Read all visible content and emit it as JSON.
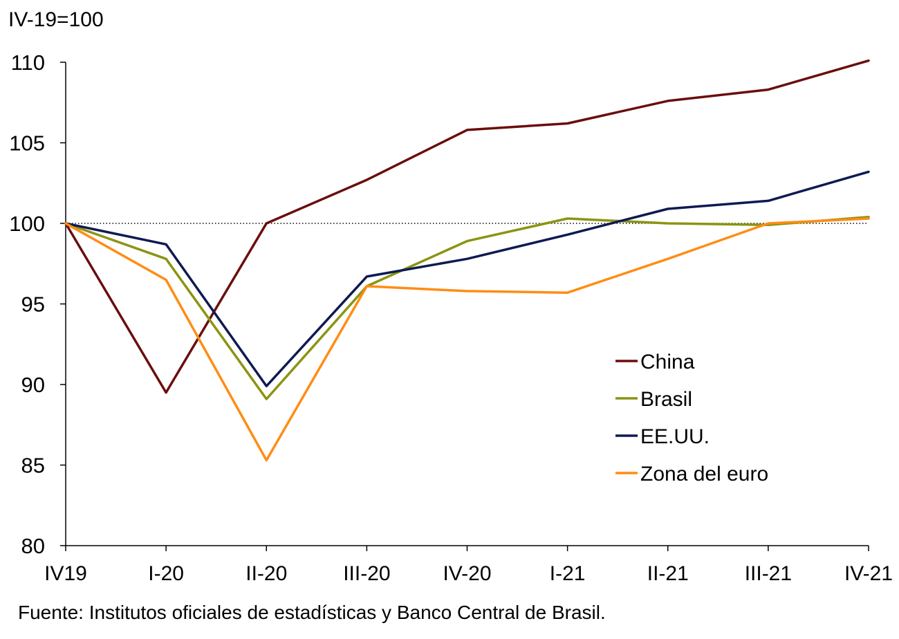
{
  "source": "Fuente: Institutos oficiales de estadísticas y Banco Central de Brasil.",
  "colors": {
    "china": "#6b0d0d",
    "brasil": "#8b9412",
    "eeuu": "#0f1a52",
    "zona_euro": "#ff8c14"
  },
  "chart_data": {
    "type": "line",
    "y_unit": "IV-19=100",
    "categories": [
      "IV19",
      "I-20",
      "II-20",
      "III-20",
      "IV-20",
      "I-21",
      "II-21",
      "III-21",
      "IV-21"
    ],
    "ylim": [
      80,
      110
    ],
    "yticks": [
      80,
      85,
      90,
      95,
      100,
      105,
      110
    ],
    "reference_line": 100,
    "grid": false,
    "legend_position": "bottom-right",
    "series": [
      {
        "name": "China",
        "color_key": "china",
        "values": [
          100,
          89.5,
          100,
          102.7,
          105.8,
          106.2,
          107.6,
          108.3,
          110.1
        ]
      },
      {
        "name": "Brasil",
        "color_key": "brasil",
        "values": [
          100,
          97.8,
          89.1,
          96.1,
          98.9,
          100.3,
          100.0,
          99.9,
          100.4
        ]
      },
      {
        "name": "EE.UU.",
        "color_key": "eeuu",
        "values": [
          100,
          98.7,
          89.9,
          96.7,
          97.8,
          99.3,
          100.9,
          101.4,
          103.2
        ]
      },
      {
        "name": "Zona del euro",
        "color_key": "zona_euro",
        "values": [
          100,
          96.5,
          85.3,
          96.1,
          95.8,
          95.7,
          97.8,
          100.0,
          100.3
        ]
      }
    ]
  }
}
